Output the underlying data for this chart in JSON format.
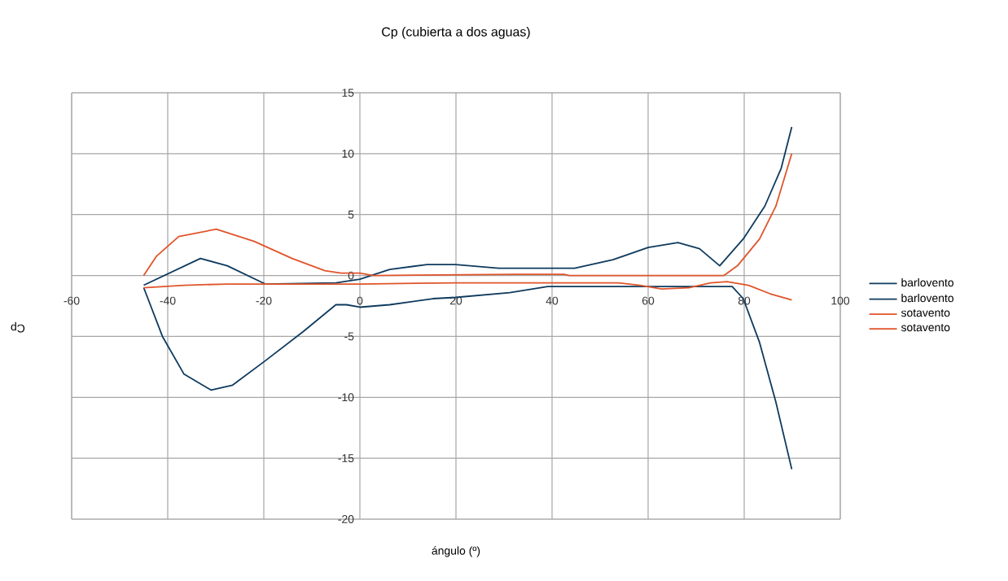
{
  "chart_data": {
    "type": "line",
    "title": "Cp (cubierta a dos aguas)",
    "xlabel": "ángulo (º)",
    "ylabel": "Cp",
    "xlim": [
      -60,
      100
    ],
    "xticks": [
      -60,
      -40,
      -20,
      0,
      20,
      40,
      60,
      80,
      100
    ],
    "ylim": [
      -20,
      15
    ],
    "yticks": [
      -20,
      -15,
      -10,
      -5,
      0,
      5,
      10,
      15
    ],
    "grid": true,
    "legend": "right",
    "line_style": "solid",
    "marker": "none",
    "series": [
      {
        "name": "barlovento",
        "color": "#0e3a5e",
        "x": [
          -45,
          -33.2,
          -27.6,
          -19.7,
          -5,
          0,
          6.2,
          14,
          19.9,
          28.9,
          44.7,
          52.7,
          60,
          66.2,
          70.7,
          74.9,
          79.8,
          84.3,
          87.7,
          89.9
        ],
        "values": [
          -0.8,
          1.4,
          0.8,
          -0.7,
          -0.6,
          -0.3,
          0.5,
          0.9,
          0.9,
          0.6,
          0.6,
          1.3,
          2.3,
          2.7,
          2.2,
          0.8,
          3.0,
          5.7,
          8.8,
          12.2
        ]
      },
      {
        "name": "barlovento",
        "color": "#0e3a5e",
        "x": [
          -45,
          -41.1,
          -36.6,
          -31,
          -26.5,
          -19.7,
          -11.8,
          -5,
          -2.8,
          0,
          6.2,
          15.2,
          19.9,
          31.2,
          39.1,
          60,
          77.5,
          79.8,
          83.2,
          86.6,
          89.9
        ],
        "values": [
          -1.0,
          -5.0,
          -8.1,
          -9.4,
          -9.0,
          -7.0,
          -4.6,
          -2.4,
          -2.4,
          -2.6,
          -2.4,
          -1.9,
          -1.8,
          -1.4,
          -0.9,
          -0.9,
          -0.9,
          -1.9,
          -5.5,
          -10.4,
          -15.9
        ]
      },
      {
        "name": "sotavento",
        "color": "#e0542a",
        "x": [
          -45,
          -42.3,
          -37.7,
          -29.9,
          -22,
          -14.1,
          -7.3,
          -3.9,
          0,
          2.8,
          32.3,
          42.5,
          43.6,
          75.8,
          78.6,
          83.2,
          86.6,
          89.9
        ],
        "values": [
          0,
          1.6,
          3.2,
          3.8,
          2.8,
          1.4,
          0.4,
          0.2,
          0.2,
          0,
          0.1,
          0.1,
          0,
          0,
          0.8,
          3.0,
          5.7,
          10.0
        ]
      },
      {
        "name": "sotavento",
        "color": "#e0542a",
        "x": [
          -45,
          -36.6,
          -27.6,
          -16.3,
          0,
          20,
          53.8,
          58.3,
          62.8,
          68.5,
          73,
          76.4,
          80.9,
          85.4,
          89.9
        ],
        "values": [
          -1.0,
          -0.8,
          -0.7,
          -0.7,
          -0.7,
          -0.6,
          -0.6,
          -0.8,
          -1.1,
          -1.0,
          -0.6,
          -0.5,
          -0.8,
          -1.5,
          -2.0
        ]
      }
    ]
  }
}
